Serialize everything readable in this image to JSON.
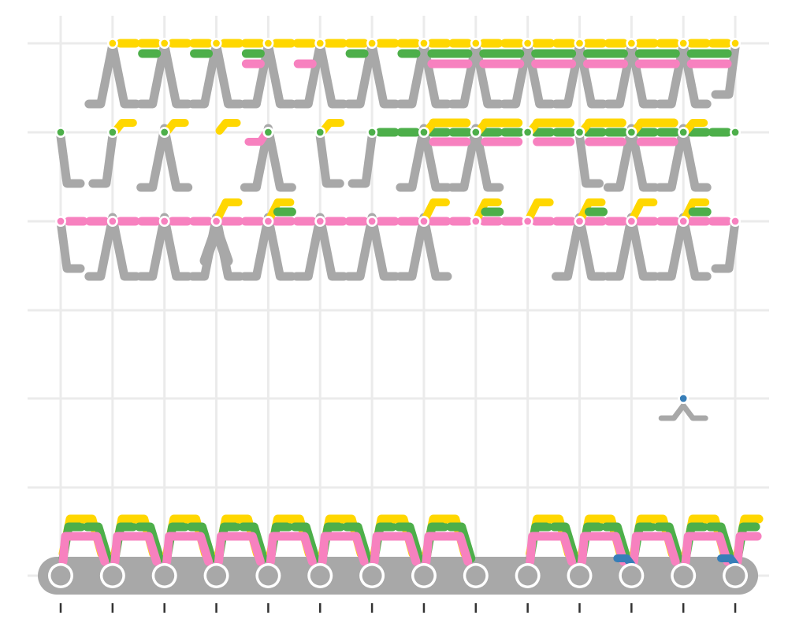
{
  "colors": {
    "background": "#ffffff",
    "grid": "#ebebeb",
    "tick": "#333333",
    "gray": "#a8a8a8",
    "yellow": "#ffd700",
    "green": "#4daf4a",
    "pink": "#f781bf",
    "blue": "#377eb8",
    "node_fill": "#a8a8a8",
    "node_ring": "#ffffff"
  },
  "diagram": {
    "columns": 14,
    "rows": 7,
    "bottom_row": {
      "description_visible": false,
      "node_count": 14,
      "colored_bundle_columns": [
        0,
        1,
        2,
        3,
        4,
        5,
        6,
        7,
        9,
        10,
        11,
        12,
        13
      ],
      "blue_hooks_columns": [
        11,
        13
      ]
    },
    "rows_content": [
      {
        "row": 0,
        "node_color": "yellow",
        "node_cols": [
          1,
          2,
          3,
          4,
          5,
          6,
          7,
          8,
          9,
          10,
          11,
          12,
          13
        ],
        "gray_wedge_cols": [
          1,
          2,
          3,
          4,
          5,
          6,
          7,
          8,
          9,
          10,
          11,
          12,
          13
        ]
      },
      {
        "row": 1,
        "node_color": "green",
        "node_cols": [
          0,
          1,
          2,
          4,
          5,
          6,
          7,
          8,
          9,
          10,
          11,
          12,
          13
        ],
        "gray_wedge_cols": [
          0,
          1,
          2,
          4,
          5,
          6,
          7,
          8,
          10,
          11,
          12
        ]
      },
      {
        "row": 2,
        "node_color": "pink",
        "node_cols": [
          0,
          1,
          2,
          3,
          4,
          5,
          6,
          7,
          8,
          9,
          10,
          11,
          12,
          13
        ],
        "gray_wedge_cols": [
          0,
          1,
          2,
          3,
          4,
          5,
          6,
          7,
          10,
          11,
          12,
          13
        ]
      },
      {
        "row": 4,
        "node_color": "blue",
        "node_cols": [
          12
        ],
        "gray_wedge_cols": [
          12
        ]
      }
    ]
  }
}
